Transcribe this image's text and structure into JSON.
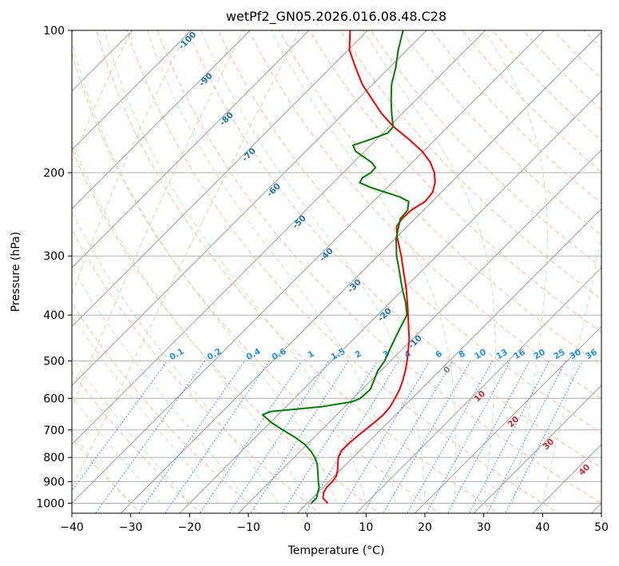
{
  "chart_data": {
    "type": "line",
    "subtype": "skew-T log-p diagram",
    "title": "wetPf2_GN05.2026.016.08.48.C28",
    "xlabel": "Temperature (°C)",
    "ylabel": "Pressure (hPa)",
    "xlim": [
      -40,
      50
    ],
    "ylim": [
      1050,
      100
    ],
    "yscale": "log",
    "xticks": [
      -40,
      -30,
      -20,
      -10,
      0,
      10,
      20,
      30,
      40,
      50
    ],
    "yticks": [
      1000,
      900,
      800,
      700,
      600,
      500,
      400,
      300,
      200,
      100
    ],
    "grid": true,
    "colors": {
      "temperature": "#ff0000",
      "dewpoint": "#008000",
      "isotherms": "#9e9e9e",
      "dry_adiabats": "#ffa07a",
      "moist_adiabats": "#90ee90",
      "mixing_ratio": "#1e90ff",
      "lcl_labels": "#1f77b4",
      "theta_e_labels": "#d62728"
    },
    "series": [
      {
        "name": "",
        "color": "#ff0000",
        "points": [
          {
            "p": 1000,
            "t": 3.5
          },
          {
            "p": 975,
            "t": 1.8
          },
          {
            "p": 950,
            "t": 1.0
          },
          {
            "p": 925,
            "t": 0.6
          },
          {
            "p": 900,
            "t": 0.6
          },
          {
            "p": 875,
            "t": 0.3
          },
          {
            "p": 850,
            "t": -0.5
          },
          {
            "p": 825,
            "t": -1.5
          },
          {
            "p": 800,
            "t": -2.5
          },
          {
            "p": 775,
            "t": -3.1
          },
          {
            "p": 750,
            "t": -3.1
          },
          {
            "p": 725,
            "t": -2.9
          },
          {
            "p": 700,
            "t": -2.6
          },
          {
            "p": 675,
            "t": -2.3
          },
          {
            "p": 650,
            "t": -2.1
          },
          {
            "p": 625,
            "t": -2.3
          },
          {
            "p": 600,
            "t": -2.9
          },
          {
            "p": 575,
            "t": -3.6
          },
          {
            "p": 550,
            "t": -4.6
          },
          {
            "p": 525,
            "t": -5.8
          },
          {
            "p": 500,
            "t": -7.2
          },
          {
            "p": 475,
            "t": -8.8
          },
          {
            "p": 450,
            "t": -10.5
          },
          {
            "p": 425,
            "t": -12.6
          },
          {
            "p": 400,
            "t": -14.8
          },
          {
            "p": 375,
            "t": -17.2
          },
          {
            "p": 350,
            "t": -19.8
          },
          {
            "p": 325,
            "t": -22.8
          },
          {
            "p": 300,
            "t": -26.0
          },
          {
            "p": 275,
            "t": -29.7
          },
          {
            "p": 260,
            "t": -31.8
          },
          {
            "p": 250,
            "t": -32.2
          },
          {
            "p": 240,
            "t": -32.1
          },
          {
            "p": 230,
            "t": -31.2
          },
          {
            "p": 220,
            "t": -31.5
          },
          {
            "p": 210,
            "t": -32.7
          },
          {
            "p": 200,
            "t": -34.5
          },
          {
            "p": 190,
            "t": -37.0
          },
          {
            "p": 180,
            "t": -40.3
          },
          {
            "p": 170,
            "t": -44.5
          },
          {
            "p": 160,
            "t": -49.2
          },
          {
            "p": 150,
            "t": -53.5
          },
          {
            "p": 140,
            "t": -57.5
          },
          {
            "p": 130,
            "t": -61.8
          },
          {
            "p": 120,
            "t": -65.7
          },
          {
            "p": 110,
            "t": -69.8
          },
          {
            "p": 100,
            "t": -73.0
          }
        ]
      },
      {
        "name": "",
        "color": "#008000",
        "points": [
          {
            "p": 1000,
            "t": 0.7
          },
          {
            "p": 975,
            "t": 0.7
          },
          {
            "p": 950,
            "t": 0.0
          },
          {
            "p": 925,
            "t": -0.7
          },
          {
            "p": 900,
            "t": -1.8
          },
          {
            "p": 875,
            "t": -2.8
          },
          {
            "p": 850,
            "t": -3.9
          },
          {
            "p": 825,
            "t": -5.0
          },
          {
            "p": 800,
            "t": -6.5
          },
          {
            "p": 775,
            "t": -8.3
          },
          {
            "p": 750,
            "t": -10.5
          },
          {
            "p": 725,
            "t": -13.3
          },
          {
            "p": 700,
            "t": -16.6
          },
          {
            "p": 675,
            "t": -19.8
          },
          {
            "p": 650,
            "t": -22.6
          },
          {
            "p": 640,
            "t": -21.8
          },
          {
            "p": 625,
            "t": -13.9
          },
          {
            "p": 610,
            "t": -9.6
          },
          {
            "p": 600,
            "t": -8.8
          },
          {
            "p": 575,
            "t": -8.6
          },
          {
            "p": 550,
            "t": -9.5
          },
          {
            "p": 525,
            "t": -10.5
          },
          {
            "p": 500,
            "t": -11.0
          },
          {
            "p": 475,
            "t": -12.0
          },
          {
            "p": 450,
            "t": -13.0
          },
          {
            "p": 425,
            "t": -14.0
          },
          {
            "p": 400,
            "t": -15.0
          },
          {
            "p": 375,
            "t": -17.5
          },
          {
            "p": 350,
            "t": -20.5
          },
          {
            "p": 325,
            "t": -23.5
          },
          {
            "p": 300,
            "t": -26.8
          },
          {
            "p": 275,
            "t": -29.9
          },
          {
            "p": 250,
            "t": -32.5
          },
          {
            "p": 240,
            "t": -32.7
          },
          {
            "p": 230,
            "t": -34.0
          },
          {
            "p": 225,
            "t": -36.3
          },
          {
            "p": 220,
            "t": -39.5
          },
          {
            "p": 215,
            "t": -42.8
          },
          {
            "p": 210,
            "t": -45.5
          },
          {
            "p": 205,
            "t": -45.9
          },
          {
            "p": 200,
            "t": -45.3
          },
          {
            "p": 195,
            "t": -45.4
          },
          {
            "p": 190,
            "t": -47.0
          },
          {
            "p": 185,
            "t": -49.3
          },
          {
            "p": 180,
            "t": -51.6
          },
          {
            "p": 175,
            "t": -53.0
          },
          {
            "p": 170,
            "t": -51.0
          },
          {
            "p": 165,
            "t": -49.2
          },
          {
            "p": 160,
            "t": -49.3
          },
          {
            "p": 150,
            "t": -51.8
          },
          {
            "p": 140,
            "t": -54.3
          },
          {
            "p": 130,
            "t": -56.8
          },
          {
            "p": 120,
            "t": -58.9
          },
          {
            "p": 110,
            "t": -61.5
          },
          {
            "p": 100,
            "t": -64.0
          }
        ]
      }
    ],
    "lcl_temperature_labels": [
      "-100",
      "-90",
      "-80",
      "-70",
      "-60",
      "-50",
      "-40",
      "-30",
      "-20",
      "-10"
    ],
    "mixing_ratio_labels": [
      "0.1",
      "0.2",
      "0.4",
      "0.6",
      "1",
      "1.5",
      "2",
      "3",
      "4",
      "6",
      "8",
      "10",
      "13",
      "16",
      "20",
      "25",
      "30",
      "36"
    ],
    "theta_e_labels": [
      "0",
      "10",
      "20",
      "30",
      "40"
    ]
  }
}
